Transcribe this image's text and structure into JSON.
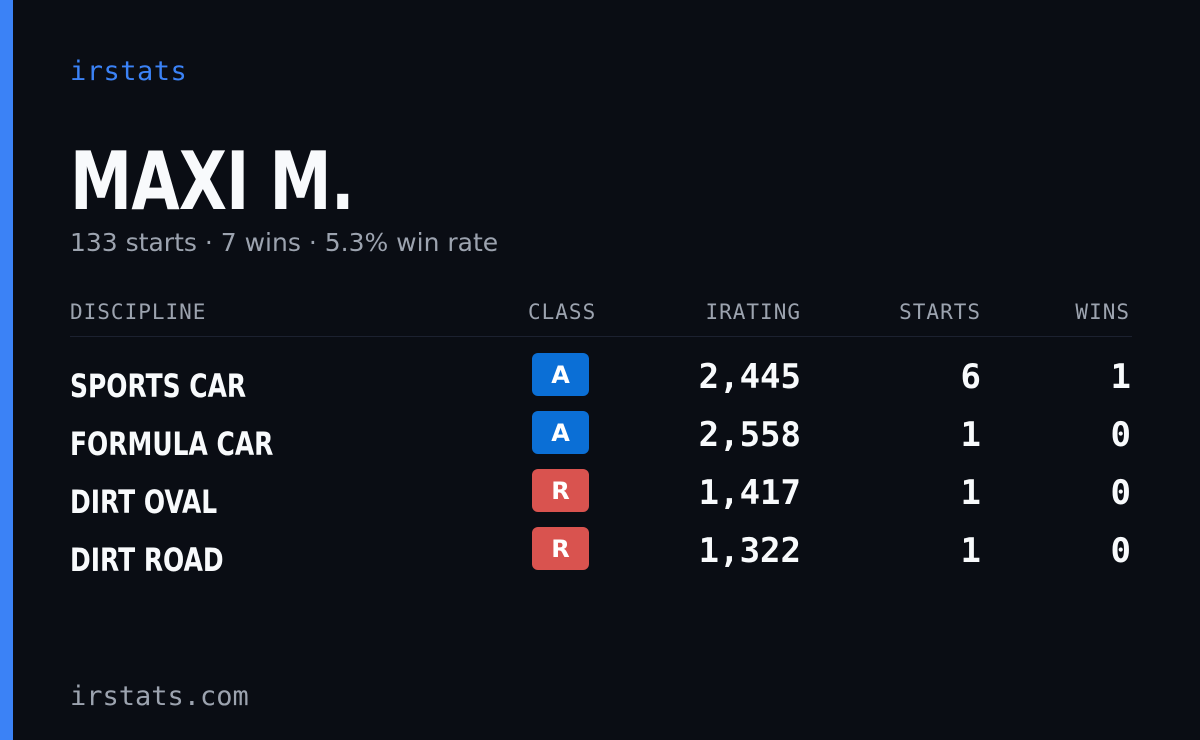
{
  "brand": "irstats",
  "driver_name": "MAXI M.",
  "summary": "133 starts · 7 wins · 5.3% win rate",
  "headers": {
    "discipline": "DISCIPLINE",
    "class": "CLASS",
    "irating": "IRATING",
    "starts": "STARTS",
    "wins": "WINS"
  },
  "rows": [
    {
      "discipline": "SPORTS CAR",
      "class": "A",
      "class_color": "#0b6fd6",
      "irating": "2,445",
      "starts": "6",
      "wins": "1"
    },
    {
      "discipline": "FORMULA CAR",
      "class": "A",
      "class_color": "#0b6fd6",
      "irating": "2,558",
      "starts": "1",
      "wins": "0"
    },
    {
      "discipline": "DIRT OVAL",
      "class": "R",
      "class_color": "#d9534f",
      "irating": "1,417",
      "starts": "1",
      "wins": "0"
    },
    {
      "discipline": "DIRT ROAD",
      "class": "R",
      "class_color": "#d9534f",
      "irating": "1,322",
      "starts": "1",
      "wins": "0"
    }
  ],
  "footer": "irstats.com",
  "colors": {
    "accent": "#3b82f6",
    "background": "#0a0d14"
  }
}
